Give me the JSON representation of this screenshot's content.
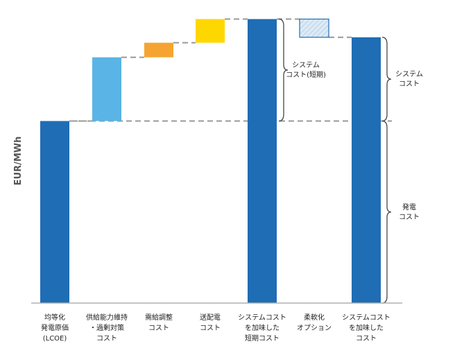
{
  "chart_data": {
    "type": "bar",
    "variant": "waterfall",
    "ylabel": "EUR/MWh",
    "categories": [
      [
        "均等化",
        "発電原価",
        "(LCOE)"
      ],
      [
        "供給能力維持",
        "・過剰対策",
        "コスト"
      ],
      [
        "需給調整",
        "コスト"
      ],
      [
        "送配電",
        "コスト"
      ],
      [
        "システムコスト",
        "を加味した",
        "短期コスト"
      ],
      [
        "柔軟化",
        "オプション"
      ],
      [
        "システムコスト",
        "を加味した",
        "コスト"
      ]
    ],
    "bars": [
      {
        "kind": "total",
        "from": 0,
        "to": 100,
        "color": "#1F6DB5"
      },
      {
        "kind": "delta",
        "from": 100,
        "to": 135,
        "color": "#5AB4E5"
      },
      {
        "kind": "delta",
        "from": 135,
        "to": 143,
        "color": "#F5A431"
      },
      {
        "kind": "delta",
        "from": 143,
        "to": 156,
        "color": "#FFD700"
      },
      {
        "kind": "total",
        "from": 0,
        "to": 156,
        "color": "#1F6DB5"
      },
      {
        "kind": "delta",
        "from": 156,
        "to": 146,
        "color": "#D7E6F3",
        "pattern": "hatched",
        "outline": "#1F6DB5"
      },
      {
        "kind": "total",
        "from": 0,
        "to": 146,
        "color": "#1F6DB5"
      }
    ],
    "ylim": [
      0,
      160
    ],
    "connector_style": "dashed",
    "connector_color": "#999999",
    "annotations": [
      {
        "label": [
          "システム",
          "コスト(短期)"
        ],
        "range": [
          100,
          156
        ],
        "side": "right-of-bar-5"
      },
      {
        "label": [
          "システム",
          "コスト"
        ],
        "range": [
          100,
          146
        ],
        "side": "right-of-bar-7"
      },
      {
        "label": [
          "発電",
          "コスト"
        ],
        "range": [
          0,
          100
        ],
        "side": "right-of-bar-7"
      }
    ],
    "grid": false,
    "legend": "none"
  }
}
